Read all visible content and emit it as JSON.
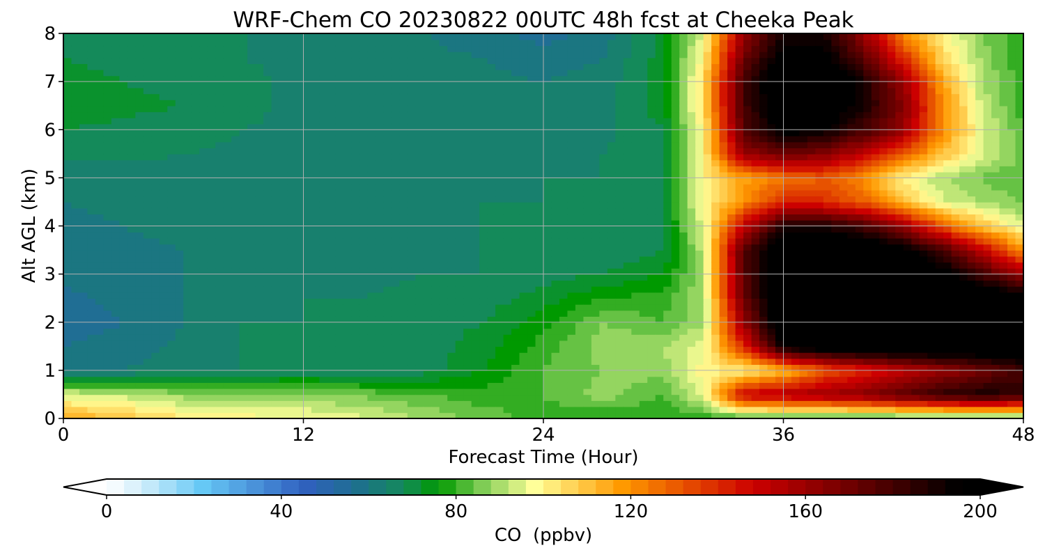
{
  "chart_data": [
    {
      "type": "heatmap",
      "title": "WRF-Chem CO  20230822 00UTC 48h fcst at Cheeka Peak",
      "xlabel": "Forecast Time (Hour)",
      "ylabel": "Alt AGL (km)",
      "xlim": [
        0,
        48
      ],
      "ylim": [
        0,
        8
      ],
      "xticks": [
        0,
        12,
        24,
        36,
        48
      ],
      "yticks": [
        0,
        1,
        2,
        3,
        4,
        5,
        6,
        7,
        8
      ],
      "grid": true,
      "x": [
        0,
        3,
        6,
        9,
        12,
        15,
        18,
        21,
        24,
        27,
        30,
        32,
        34,
        36,
        38,
        40,
        42,
        44,
        46,
        48
      ],
      "y": [
        0,
        0.5,
        1,
        1.5,
        2,
        2.5,
        3,
        3.5,
        4,
        4.5,
        5,
        5.5,
        6,
        6.5,
        7,
        7.5,
        8
      ],
      "z_units": "ppbv",
      "values": [
        [
          115,
          110,
          103,
          100,
          98,
          95,
          90,
          84,
          80,
          78,
          78,
          78,
          78,
          78,
          78,
          78,
          78,
          78,
          78,
          78
        ],
        [
          95,
          92,
          88,
          86,
          88,
          85,
          82,
          80,
          82,
          88,
          82,
          96,
          150,
          155,
          160,
          165,
          175,
          185,
          190,
          185
        ],
        [
          60,
          62,
          64,
          66,
          66,
          66,
          68,
          74,
          82,
          86,
          88,
          100,
          100,
          110,
          130,
          140,
          150,
          160,
          170,
          180
        ],
        [
          58,
          60,
          63,
          66,
          66,
          66,
          68,
          72,
          80,
          88,
          90,
          96,
          140,
          195,
          205,
          210,
          210,
          210,
          210,
          210
        ],
        [
          56,
          58,
          62,
          66,
          66,
          66,
          68,
          70,
          76,
          86,
          82,
          90,
          160,
          210,
          210,
          210,
          210,
          210,
          210,
          210
        ],
        [
          57,
          59,
          62,
          65,
          66,
          66,
          67,
          68,
          72,
          78,
          80,
          90,
          170,
          210,
          210,
          210,
          210,
          210,
          210,
          200
        ],
        [
          59,
          60,
          62,
          64,
          65,
          65,
          66,
          66,
          68,
          70,
          74,
          90,
          175,
          210,
          210,
          210,
          210,
          200,
          180,
          160
        ],
        [
          60,
          61,
          62,
          63,
          64,
          65,
          65,
          66,
          66,
          67,
          70,
          92,
          175,
          210,
          210,
          210,
          200,
          180,
          150,
          120
        ],
        [
          61,
          62,
          63,
          64,
          64,
          65,
          65,
          66,
          66,
          67,
          70,
          95,
          150,
          190,
          190,
          180,
          160,
          130,
          110,
          95
        ],
        [
          62,
          63,
          63,
          64,
          65,
          65,
          65,
          66,
          66,
          67,
          70,
          100,
          120,
          140,
          140,
          130,
          110,
          95,
          90,
          85
        ],
        [
          64,
          64,
          64,
          64,
          65,
          65,
          65,
          65,
          66,
          66,
          70,
          100,
          115,
          125,
          130,
          120,
          100,
          90,
          85,
          82
        ],
        [
          67,
          67,
          66,
          65,
          65,
          65,
          65,
          65,
          65,
          66,
          70,
          100,
          160,
          170,
          165,
          150,
          130,
          110,
          95,
          85
        ],
        [
          70,
          69,
          68,
          66,
          65,
          64,
          64,
          64,
          64,
          65,
          70,
          100,
          175,
          200,
          195,
          180,
          160,
          120,
          95,
          82
        ],
        [
          72,
          71,
          70,
          67,
          65,
          64,
          64,
          64,
          64,
          65,
          72,
          105,
          180,
          205,
          205,
          190,
          165,
          120,
          92,
          80
        ],
        [
          71,
          70,
          69,
          67,
          65,
          64,
          64,
          63,
          62,
          64,
          72,
          105,
          180,
          210,
          210,
          190,
          160,
          115,
          90,
          80
        ],
        [
          70,
          69,
          68,
          66,
          65,
          63,
          63,
          62,
          60,
          62,
          72,
          100,
          170,
          200,
          200,
          175,
          140,
          105,
          88,
          78
        ],
        [
          70,
          69,
          68,
          66,
          65,
          63,
          62,
          60,
          56,
          60,
          72,
          95,
          160,
          190,
          190,
          160,
          120,
          100,
          86,
          78
        ]
      ],
      "colorbar": {
        "label": "CO  (ppbv)",
        "min": 0,
        "max": 200,
        "ticks": [
          0,
          40,
          80,
          120,
          160,
          200
        ],
        "extend": "both",
        "stops": [
          {
            "v": 0,
            "c": "#ffffff"
          },
          {
            "v": 8,
            "c": "#d2eefb"
          },
          {
            "v": 22,
            "c": "#66c8f5"
          },
          {
            "v": 45,
            "c": "#3060c0"
          },
          {
            "v": 57,
            "c": "#1e6f90"
          },
          {
            "v": 68,
            "c": "#148a5a"
          },
          {
            "v": 76,
            "c": "#009900"
          },
          {
            "v": 86,
            "c": "#7fcc55"
          },
          {
            "v": 98,
            "c": "#ffff99"
          },
          {
            "v": 118,
            "c": "#ff9900"
          },
          {
            "v": 148,
            "c": "#cc0000"
          },
          {
            "v": 172,
            "c": "#660000"
          },
          {
            "v": 195,
            "c": "#000000"
          }
        ],
        "under_color": "#ffffff",
        "over_color": "#000000"
      }
    }
  ]
}
